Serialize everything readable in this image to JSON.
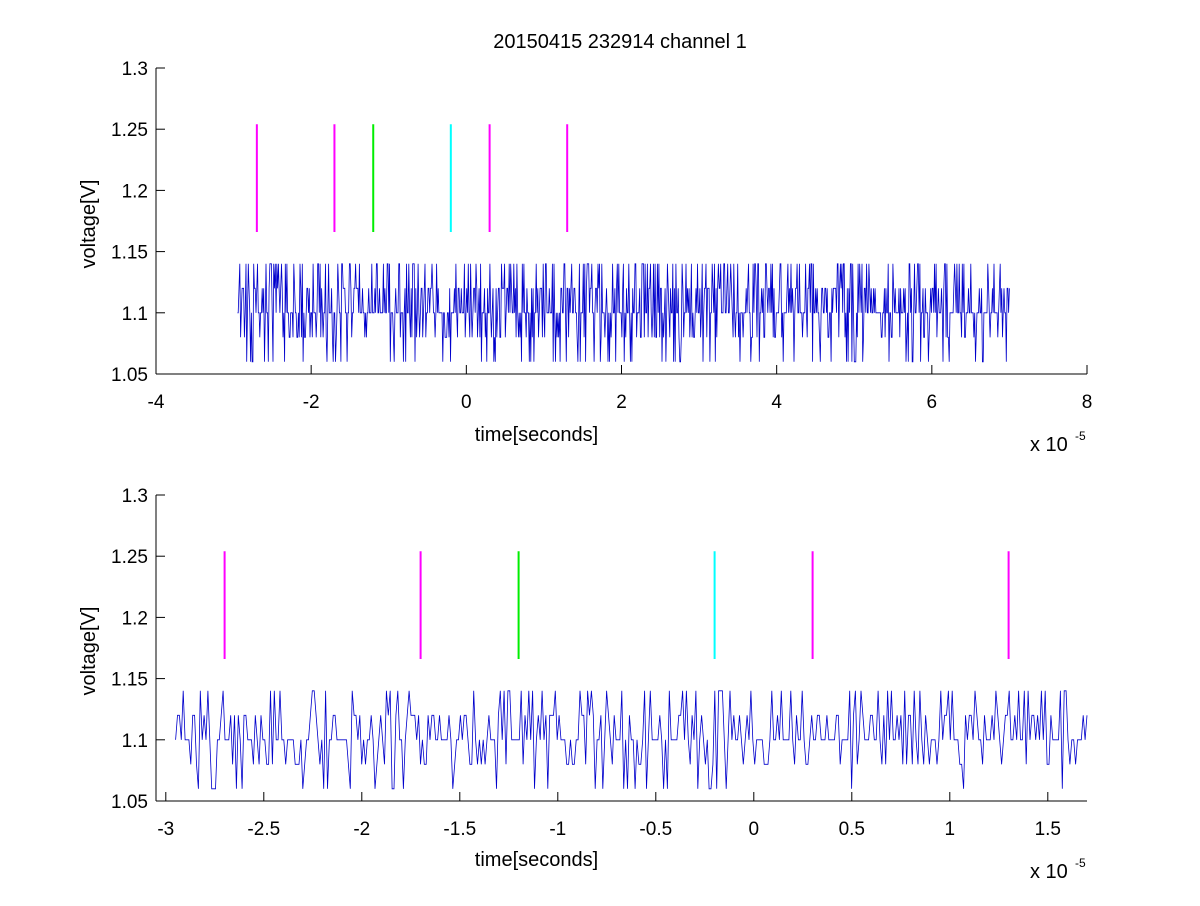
{
  "figure": {
    "title": "20150415 232914 channel 1"
  },
  "chart_data": [
    {
      "type": "line",
      "title": "20150415 232914 channel 1",
      "xlabel": "time[seconds]",
      "ylabel": "voltage[V]",
      "x_exponent_label": "x 10",
      "x_exponent": "-5",
      "xlim": [
        -4,
        8
      ],
      "ylim": [
        1.05,
        1.3
      ],
      "xticks": [
        -4,
        -2,
        0,
        2,
        4,
        6,
        8
      ],
      "xtick_labels": [
        "-4",
        "-2",
        "0",
        "2",
        "4",
        "6",
        "8"
      ],
      "yticks": [
        1.05,
        1.1,
        1.15,
        1.2,
        1.25,
        1.3
      ],
      "ytick_labels": [
        "1.05",
        "1.1",
        "1.15",
        "1.2",
        "1.25",
        "1.3"
      ],
      "grid": false,
      "series": [
        {
          "color": "#0000cc",
          "x_range": [
            -2.95,
            7.0
          ],
          "levels": [
            1.06,
            1.08,
            1.1,
            1.12,
            1.14
          ],
          "baseline": 1.1,
          "samples": 1000
        }
      ],
      "markers": [
        {
          "x": -2.7,
          "y_range": [
            1.166,
            1.254
          ],
          "color": "#ff00ff"
        },
        {
          "x": -1.7,
          "y_range": [
            1.166,
            1.254
          ],
          "color": "#ff00ff"
        },
        {
          "x": -1.2,
          "y_range": [
            1.166,
            1.254
          ],
          "color": "#00ee00"
        },
        {
          "x": -0.2,
          "y_range": [
            1.166,
            1.254
          ],
          "color": "#00ffff"
        },
        {
          "x": 0.3,
          "y_range": [
            1.166,
            1.254
          ],
          "color": "#ff00ff"
        },
        {
          "x": 1.3,
          "y_range": [
            1.166,
            1.254
          ],
          "color": "#ff00ff"
        }
      ]
    },
    {
      "type": "line",
      "title": "",
      "xlabel": "time[seconds]",
      "ylabel": "voltage[V]",
      "x_exponent_label": "x 10",
      "x_exponent": "-5",
      "xlim": [
        -3.05,
        1.7
      ],
      "ylim": [
        1.05,
        1.3
      ],
      "xticks": [
        -3,
        -2.5,
        -2,
        -1.5,
        -1,
        -0.5,
        0,
        0.5,
        1,
        1.5
      ],
      "xtick_labels": [
        "-3",
        "-2.5",
        "-2",
        "-1.5",
        "-1",
        "-0.5",
        "0",
        "0.5",
        "1",
        "1.5"
      ],
      "yticks": [
        1.05,
        1.1,
        1.15,
        1.2,
        1.25,
        1.3
      ],
      "ytick_labels": [
        "1.05",
        "1.1",
        "1.15",
        "1.2",
        "1.25",
        "1.3"
      ],
      "grid": false,
      "series": [
        {
          "color": "#0000cc",
          "x_range": [
            -2.95,
            1.7
          ],
          "levels": [
            1.06,
            1.08,
            1.1,
            1.12,
            1.14
          ],
          "baseline": 1.1,
          "samples": 480
        }
      ],
      "markers": [
        {
          "x": -2.7,
          "y_range": [
            1.166,
            1.254
          ],
          "color": "#ff00ff"
        },
        {
          "x": -1.7,
          "y_range": [
            1.166,
            1.254
          ],
          "color": "#ff00ff"
        },
        {
          "x": -1.2,
          "y_range": [
            1.166,
            1.254
          ],
          "color": "#00ee00"
        },
        {
          "x": -0.2,
          "y_range": [
            1.166,
            1.254
          ],
          "color": "#00ffff"
        },
        {
          "x": 0.3,
          "y_range": [
            1.166,
            1.254
          ],
          "color": "#ff00ff"
        },
        {
          "x": 1.3,
          "y_range": [
            1.166,
            1.254
          ],
          "color": "#ff00ff"
        }
      ]
    }
  ]
}
